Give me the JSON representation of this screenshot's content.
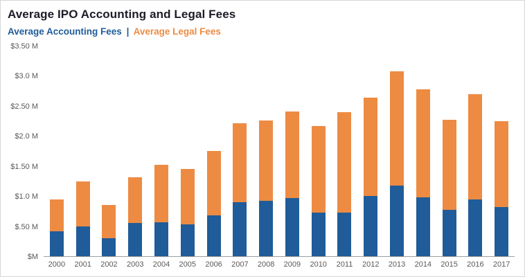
{
  "header": {
    "title": "Average IPO Accounting and Legal Fees",
    "legend": {
      "accounting_label": "Average Accounting Fees",
      "separator": "|",
      "legal_label": "Average Legal Fees"
    }
  },
  "colors": {
    "accounting_bar": "#1f5c99",
    "legal_bar": "#ed8b43",
    "title_text": "#1c1c28",
    "axis_text": "#595959"
  },
  "chart_data": {
    "type": "bar",
    "stacked": true,
    "title": "Average IPO Accounting and Legal Fees",
    "xlabel": "",
    "ylabel": "",
    "ylim": [
      0,
      3.5
    ],
    "grid": false,
    "legend_position": "top-left",
    "categories": [
      "2000",
      "2001",
      "2002",
      "2003",
      "2004",
      "2005",
      "2006",
      "2007",
      "2008",
      "2009",
      "2010",
      "2011",
      "2012",
      "2013",
      "2014",
      "2015",
      "2016",
      "2017"
    ],
    "series": [
      {
        "name": "Average Accounting Fees",
        "color": "#1f5c99",
        "values": [
          0.42,
          0.5,
          0.3,
          0.55,
          0.57,
          0.53,
          0.68,
          0.9,
          0.92,
          0.97,
          0.73,
          0.73,
          1.0,
          1.18,
          0.98,
          0.77,
          0.95,
          0.82
        ]
      },
      {
        "name": "Average Legal Fees",
        "color": "#ed8b43",
        "values": [
          0.53,
          0.75,
          0.55,
          0.77,
          0.96,
          0.93,
          1.08,
          1.32,
          1.34,
          1.45,
          1.44,
          1.67,
          1.65,
          1.9,
          1.8,
          1.51,
          1.75,
          1.43
        ]
      }
    ],
    "totals": [
      0.95,
      1.25,
      0.85,
      1.32,
      1.53,
      1.46,
      1.76,
      2.22,
      2.26,
      2.42,
      2.17,
      2.4,
      2.65,
      3.08,
      2.78,
      2.28,
      2.7,
      2.25
    ],
    "yticks": [
      {
        "value": 3.5,
        "label": "$3.50 M"
      },
      {
        "value": 3.0,
        "label": "$3.0 M"
      },
      {
        "value": 2.5,
        "label": "$2.50 M"
      },
      {
        "value": 2.0,
        "label": "$2.0 M"
      },
      {
        "value": 1.5,
        "label": "$1.50 M"
      },
      {
        "value": 1.0,
        "label": "$1.0 M"
      },
      {
        "value": 0.5,
        "label": "$.50 M"
      },
      {
        "value": 0.0,
        "label": "$M"
      }
    ]
  }
}
